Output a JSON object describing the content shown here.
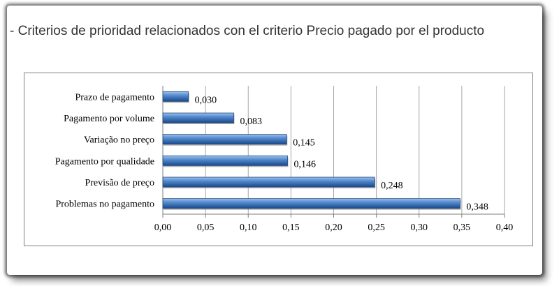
{
  "title": "- Criterios de prioridad relacionados con el criterio Precio pagado por el producto",
  "chart_data": {
    "type": "bar",
    "orientation": "horizontal",
    "title": "",
    "xlabel": "",
    "ylabel": "",
    "categories": [
      "Prazo de pagamento",
      "Pagamento por volume",
      "Variação no preço",
      "Pagamento por qualidade",
      "Previsão de preço",
      "Problemas no pagamento"
    ],
    "values": [
      0.03,
      0.083,
      0.145,
      0.146,
      0.248,
      0.348
    ],
    "value_labels": [
      "0,030",
      "0,083",
      "0,145",
      "0,146",
      "0,248",
      "0,348"
    ],
    "xlim": [
      0,
      0.4
    ],
    "ticks": [
      "0,00",
      "0,05",
      "0,10",
      "0,15",
      "0,20",
      "0,25",
      "0,30",
      "0,35",
      "0,40"
    ],
    "grid": true,
    "legend": "none",
    "bar_color": "#4f81bd"
  }
}
